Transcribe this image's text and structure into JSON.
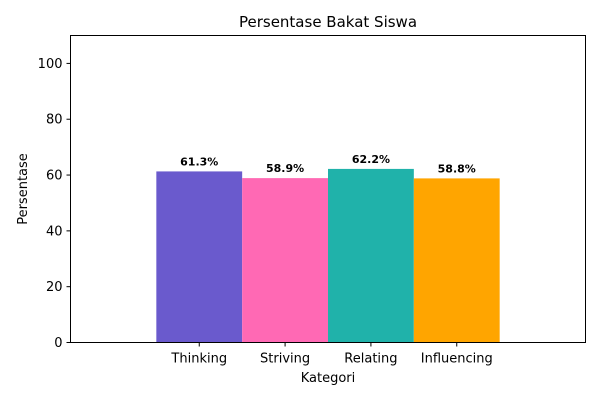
{
  "chart_data": {
    "type": "bar",
    "title": "Persentase Bakat Siswa",
    "xlabel": "Kategori",
    "ylabel": "Persentase",
    "categories": [
      "Thinking",
      "Striving",
      "Relating",
      "Influencing"
    ],
    "values": [
      61.3,
      58.9,
      62.2,
      58.8
    ],
    "data_labels": [
      "61.3%",
      "58.9%",
      "62.2%",
      "58.8%"
    ],
    "colors": [
      "#6A5ACD",
      "#FF69B4",
      "#20B2AA",
      "#FFA500"
    ],
    "ylim": [
      0,
      110
    ],
    "yticks": [
      0,
      20,
      40,
      60,
      80,
      100
    ],
    "xlim": [
      -1.5,
      4.5
    ],
    "grid": false,
    "legend": "none"
  }
}
